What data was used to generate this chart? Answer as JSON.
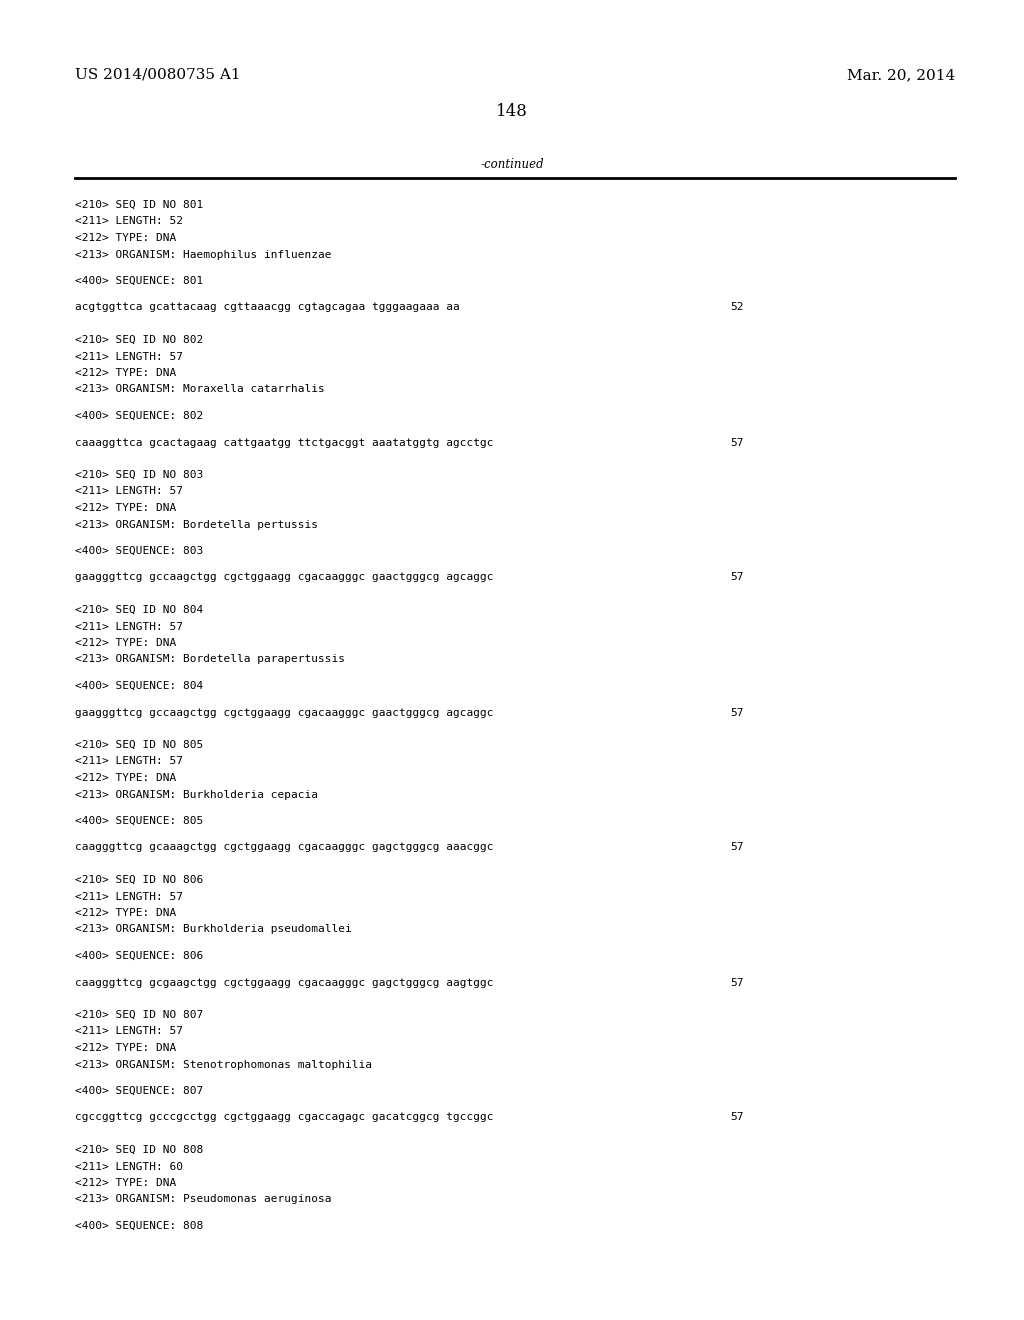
{
  "page_number": "148",
  "left_header": "US 2014/0080735 A1",
  "right_header": "Mar. 20, 2014",
  "continued_label": "-continued",
  "background_color": "#ffffff",
  "text_color": "#000000",
  "font_size_header": 11,
  "font_size_body": 8.0,
  "font_size_page_num": 12,
  "entries": [
    {
      "seq_id": "801",
      "length": "52",
      "type": "DNA",
      "organism": "Haemophilus influenzae",
      "sequence_num": "801",
      "sequence": "acgtggttca gcattacaag cgttaaacgg cgtagcagaa tgggaagaaa aa",
      "seq_length_label": "52"
    },
    {
      "seq_id": "802",
      "length": "57",
      "type": "DNA",
      "organism": "Moraxella catarrhalis",
      "sequence_num": "802",
      "sequence": "caaaggttca gcactagaag cattgaatgg ttctgacggt aaatatggtg agcctgc",
      "seq_length_label": "57"
    },
    {
      "seq_id": "803",
      "length": "57",
      "type": "DNA",
      "organism": "Bordetella pertussis",
      "sequence_num": "803",
      "sequence": "gaagggttcg gccaagctgg cgctggaagg cgacaagggc gaactgggcg agcaggc",
      "seq_length_label": "57"
    },
    {
      "seq_id": "804",
      "length": "57",
      "type": "DNA",
      "organism": "Bordetella parapertussis",
      "sequence_num": "804",
      "sequence": "gaagggttcg gccaagctgg cgctggaagg cgacaagggc gaactgggcg agcaggc",
      "seq_length_label": "57"
    },
    {
      "seq_id": "805",
      "length": "57",
      "type": "DNA",
      "organism": "Burkholderia cepacia",
      "sequence_num": "805",
      "sequence": "caagggttcg gcaaagctgg cgctggaagg cgacaagggc gagctgggcg aaacggc",
      "seq_length_label": "57"
    },
    {
      "seq_id": "806",
      "length": "57",
      "type": "DNA",
      "organism": "Burkholderia pseudomallei",
      "sequence_num": "806",
      "sequence": "caagggttcg gcgaagctgg cgctggaagg cgacaagggc gagctgggcg aagtggc",
      "seq_length_label": "57"
    },
    {
      "seq_id": "807",
      "length": "57",
      "type": "DNA",
      "organism": "Stenotrophomonas maltophilia",
      "sequence_num": "807",
      "sequence": "cgccggttcg gcccgcctgg cgctggaagg cgaccagagc gacatcggcg tgccggc",
      "seq_length_label": "57"
    },
    {
      "seq_id": "808",
      "length": "60",
      "type": "DNA",
      "organism": "Pseudomonas aeruginosa",
      "sequence_num": "808",
      "sequence": "",
      "seq_length_label": ""
    }
  ]
}
